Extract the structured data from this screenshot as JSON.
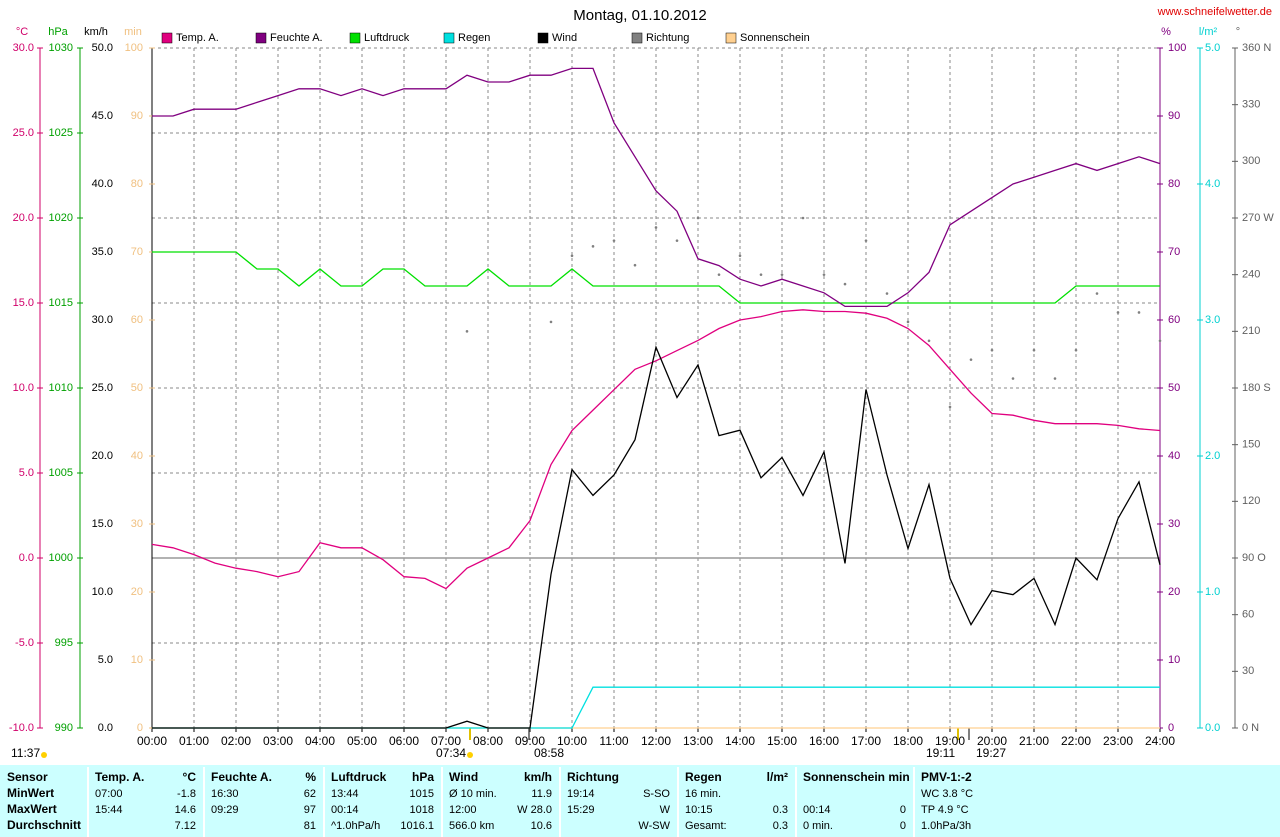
{
  "chart_data": {
    "type": "line",
    "title": "Montag, 01.10.2012",
    "site": "www.schneifelwetter.de",
    "x": [
      0,
      0.5,
      1,
      1.5,
      2,
      2.5,
      3,
      3.5,
      4,
      4.5,
      5,
      5.5,
      6,
      6.5,
      7,
      7.5,
      8,
      8.5,
      9,
      9.5,
      10,
      10.5,
      11,
      11.5,
      12,
      12.5,
      13,
      13.5,
      14,
      14.5,
      15,
      15.5,
      16,
      16.5,
      17,
      17.5,
      18,
      18.5,
      19,
      19.5,
      20,
      20.5,
      21,
      21.5,
      22,
      22.5,
      23,
      23.5,
      24
    ],
    "xlim": [
      0,
      24
    ],
    "xticks": [
      {
        "value": 0,
        "label": "00:00"
      },
      {
        "value": 1,
        "label": "01:00"
      },
      {
        "value": 2,
        "label": "02:00"
      },
      {
        "value": 3,
        "label": "03:00"
      },
      {
        "value": 4,
        "label": "04:00"
      },
      {
        "value": 5,
        "label": "05:00"
      },
      {
        "value": 6,
        "label": "06:00"
      },
      {
        "value": 7,
        "label": "07:00"
      },
      {
        "value": 8,
        "label": "08:00"
      },
      {
        "value": 9,
        "label": "09:00"
      },
      {
        "value": 10,
        "label": "10:00"
      },
      {
        "value": 11,
        "label": "11:00"
      },
      {
        "value": 12,
        "label": "12:00"
      },
      {
        "value": 13,
        "label": "13:00"
      },
      {
        "value": 14,
        "label": "14:00"
      },
      {
        "value": 15,
        "label": "15:00"
      },
      {
        "value": 16,
        "label": "16:00"
      },
      {
        "value": 17,
        "label": "17:00"
      },
      {
        "value": 18,
        "label": "18:00"
      },
      {
        "value": 19,
        "label": "19:00"
      },
      {
        "value": 20,
        "label": "20:00"
      },
      {
        "value": 21,
        "label": "21:00"
      },
      {
        "value": 22,
        "label": "22:00"
      },
      {
        "value": 23,
        "label": "23:00"
      },
      {
        "value": 24,
        "label": "24:00"
      }
    ],
    "grid": true,
    "grid_axis": "temp",
    "reference_line": {
      "axis": "temp",
      "value": 0
    },
    "axes": [
      {
        "id": "temp",
        "unit": "°C",
        "color": "#d0006a",
        "lim": [
          -10,
          30
        ],
        "ticks": [
          {
            "value": -10,
            "label": "-10.0"
          },
          {
            "value": -5,
            "label": "-5.0"
          },
          {
            "value": 0,
            "label": "0.0"
          },
          {
            "value": 5,
            "label": "5.0"
          },
          {
            "value": 10,
            "label": "10.0"
          },
          {
            "value": 15,
            "label": "15.0"
          },
          {
            "value": 20,
            "label": "20.0"
          },
          {
            "value": 25,
            "label": "25.0"
          },
          {
            "value": 30,
            "label": "30.0"
          }
        ]
      },
      {
        "id": "pressure",
        "unit": "hPa",
        "color": "#00a000",
        "lim": [
          990,
          1030
        ],
        "ticks": [
          990,
          995,
          1000,
          1005,
          1010,
          1015,
          1020,
          1025,
          1030
        ]
      },
      {
        "id": "wind",
        "unit": "km/h",
        "color": "#000000",
        "lim": [
          0,
          50
        ],
        "ticks": [
          {
            "value": 0,
            "label": "0.0"
          },
          {
            "value": 5,
            "label": "5.0"
          },
          {
            "value": 10,
            "label": "10.0"
          },
          {
            "value": 15,
            "label": "15.0"
          },
          {
            "value": 20,
            "label": "20.0"
          },
          {
            "value": 25,
            "label": "25.0"
          },
          {
            "value": 30,
            "label": "30.0"
          },
          {
            "value": 35,
            "label": "35.0"
          },
          {
            "value": 40,
            "label": "40.0"
          },
          {
            "value": 45,
            "label": "45.0"
          },
          {
            "value": 50,
            "label": "50.0"
          }
        ]
      },
      {
        "id": "sun",
        "unit": "min",
        "color": "#f0c080",
        "lim": [
          0,
          100
        ],
        "ticks": [
          0,
          10,
          20,
          30,
          40,
          50,
          60,
          70,
          80,
          90,
          100
        ]
      },
      {
        "id": "humidity",
        "unit": "%",
        "color": "#800080",
        "lim": [
          0,
          100
        ],
        "ticks": [
          0,
          10,
          20,
          30,
          40,
          50,
          60,
          70,
          80,
          90,
          100
        ]
      },
      {
        "id": "rain",
        "unit": "l/m²",
        "color": "#00d0d0",
        "lim": [
          0,
          5
        ],
        "ticks": [
          {
            "value": 0,
            "label": "0.0"
          },
          {
            "value": 1,
            "label": "1.0"
          },
          {
            "value": 2,
            "label": "2.0"
          },
          {
            "value": 3,
            "label": "3.0"
          },
          {
            "value": 4,
            "label": "4.0"
          },
          {
            "value": 5,
            "label": "5.0"
          }
        ]
      },
      {
        "id": "direction",
        "unit": "°",
        "color": "#606060",
        "lim": [
          0,
          360
        ],
        "ticks": [
          {
            "value": 0,
            "label": "0 N"
          },
          30,
          60,
          {
            "value": 90,
            "label": "90 O"
          },
          120,
          150,
          {
            "value": 180,
            "label": "180 S"
          },
          210,
          240,
          {
            "value": 270,
            "label": "270 W"
          },
          300,
          330,
          {
            "value": 360,
            "label": "360 N"
          }
        ]
      }
    ],
    "series": [
      {
        "name": "Temp. A.",
        "color": "#e0007f",
        "axis": "temp",
        "values": [
          0.8,
          0.6,
          0.2,
          -0.3,
          -0.6,
          -0.8,
          -1.1,
          -0.8,
          0.9,
          0.6,
          0.6,
          -0.1,
          -1.1,
          -1.2,
          -1.8,
          -0.6,
          0,
          0.6,
          2.2,
          5.5,
          7.5,
          8.7,
          9.9,
          11.1,
          11.6,
          12.2,
          12.8,
          13.5,
          14.0,
          14.2,
          14.5,
          14.6,
          14.5,
          14.5,
          14.4,
          14.1,
          13.5,
          12.5,
          11.1,
          9.7,
          8.5,
          8.4,
          8.1,
          7.9,
          7.9,
          7.9,
          7.8,
          7.6,
          7.5
        ]
      },
      {
        "name": "Feuchte A.",
        "color": "#800080",
        "axis": "humidity",
        "values": [
          90,
          90,
          91,
          91,
          91,
          92,
          93,
          94,
          94,
          93,
          94,
          93,
          94,
          94,
          94,
          96,
          95,
          95,
          96,
          96,
          97,
          97,
          89,
          84,
          79,
          76,
          69,
          68,
          66,
          65,
          66,
          65,
          64,
          62,
          62,
          62,
          64,
          67,
          74,
          76,
          78,
          80,
          81,
          82,
          83,
          82,
          83,
          84,
          83
        ]
      },
      {
        "name": "Luftdruck",
        "color": "#00e000",
        "axis": "pressure",
        "values": [
          1018,
          1018,
          1018,
          1018,
          1018,
          1017,
          1017,
          1016,
          1017,
          1016,
          1016,
          1017,
          1017,
          1016,
          1016,
          1016,
          1017,
          1016,
          1016,
          1016,
          1017,
          1016,
          1016,
          1016,
          1016,
          1016,
          1016,
          1016,
          1015,
          1015,
          1015,
          1015,
          1015,
          1015,
          1015,
          1015,
          1015,
          1015,
          1015,
          1015,
          1015,
          1015,
          1015,
          1015,
          1016,
          1016,
          1016,
          1016,
          1016
        ]
      },
      {
        "name": "Regen",
        "color": "#00e0e0",
        "axis": "rain",
        "values": [
          0,
          0,
          0,
          0,
          0,
          0,
          0,
          0,
          0,
          0,
          0,
          0,
          0,
          0,
          0,
          0,
          0,
          0,
          0,
          0,
          0,
          0.3,
          0.3,
          0.3,
          0.3,
          0.3,
          0.3,
          0.3,
          0.3,
          0.3,
          0.3,
          0.3,
          0.3,
          0.3,
          0.3,
          0.3,
          0.3,
          0.3,
          0.3,
          0.3,
          0.3,
          0.3,
          0.3,
          0.3,
          0.3,
          0.3,
          0.3,
          0.3,
          0.3
        ]
      },
      {
        "name": "Wind",
        "color": "#000000",
        "axis": "wind",
        "values": [
          0,
          0,
          0,
          0,
          0,
          0,
          0,
          0,
          0,
          0,
          0,
          0,
          0,
          0,
          0,
          0.5,
          0,
          0,
          0,
          11.3,
          19,
          17.1,
          18.6,
          21.2,
          28,
          24.3,
          26.7,
          21.5,
          21.9,
          18.4,
          19.9,
          17.1,
          20.3,
          12.1,
          24.9,
          18.6,
          13.2,
          17.9,
          11,
          7.6,
          10.1,
          9.8,
          11,
          7.6,
          12.5,
          10.9,
          15.4,
          18.1,
          12
        ]
      },
      {
        "name": "Richtung",
        "color": "#808080",
        "axis": "direction",
        "style": "dots",
        "values": [
          null,
          null,
          null,
          null,
          null,
          null,
          null,
          null,
          null,
          null,
          null,
          null,
          null,
          null,
          null,
          210,
          null,
          null,
          null,
          215,
          250,
          255,
          258,
          245,
          265,
          258,
          270,
          240,
          250,
          240,
          240,
          270,
          240,
          235,
          258,
          230,
          215,
          205,
          170,
          195,
          200,
          185,
          200,
          185,
          200,
          230,
          220,
          220,
          205
        ]
      },
      {
        "name": "Sonnenschein",
        "color": "#ffd090",
        "axis": "sun",
        "values": [
          0,
          0,
          0,
          0,
          0,
          0,
          0,
          0,
          0,
          0,
          0,
          0,
          0,
          0,
          0,
          0,
          0,
          0,
          0,
          0,
          0,
          0,
          0,
          0,
          0,
          0,
          0,
          0,
          0,
          0,
          0,
          0,
          0,
          0,
          0,
          0,
          0,
          0,
          0,
          0,
          0,
          0,
          0,
          0,
          0,
          0,
          0,
          0,
          0
        ]
      }
    ],
    "annotations": [
      "11:37",
      "07:34",
      "08:58",
      "19:11",
      "19:27"
    ]
  },
  "table": {
    "columns": [
      {
        "title": "Sensor",
        "rows": [
          "MinWert",
          "MaxWert",
          "Durchschnitt"
        ]
      },
      {
        "title": "Temp. A.",
        "unit": "°C",
        "rows": [
          {
            "l": "07:00",
            "r": "-1.8"
          },
          {
            "l": "15:44",
            "r": "14.6"
          },
          {
            "r": "7.12"
          }
        ]
      },
      {
        "title": "Feuchte A.",
        "unit": "%",
        "rows": [
          {
            "l": "16:30",
            "r": "62"
          },
          {
            "l": "09:29",
            "r": "97"
          },
          {
            "r": "81"
          }
        ]
      },
      {
        "title": "Luftdruck",
        "unit": "hPa",
        "rows": [
          {
            "l": "13:44",
            "r": "1015"
          },
          {
            "l": "00:14",
            "r": "1018"
          },
          {
            "l": "^1.0hPa/h",
            "r": "1016.1"
          }
        ]
      },
      {
        "title": "Wind",
        "unit": "km/h",
        "rows": [
          {
            "l": "Ø 10 min.",
            "r": "11.9"
          },
          {
            "l": "12:00",
            "r": "W 28.0"
          },
          {
            "l": "566.0 km",
            "r": "10.6"
          }
        ]
      },
      {
        "title": "Richtung",
        "rows": [
          {
            "l": "19:14",
            "r": "S-SO"
          },
          {
            "l": "15:29",
            "r": "W"
          },
          {
            "r": "W-SW"
          }
        ]
      },
      {
        "title": "Regen",
        "unit": "l/m²",
        "rows": [
          {
            "l": "16 min."
          },
          {
            "l": "10:15",
            "r": "0.3"
          },
          {
            "l": "Gesamt:",
            "r": "0.3"
          }
        ]
      },
      {
        "title": "Sonnenschein min",
        "rows": [
          null,
          {
            "l": "00:14",
            "r": "0"
          },
          {
            "l": "0 min.",
            "r": "0"
          }
        ]
      },
      {
        "title": "PMV-1:-2",
        "rows": [
          {
            "l": "WC 3.8 °C"
          },
          {
            "l": "TP 4.9 °C"
          },
          {
            "l": "1.0hPa/3h"
          }
        ]
      }
    ]
  }
}
